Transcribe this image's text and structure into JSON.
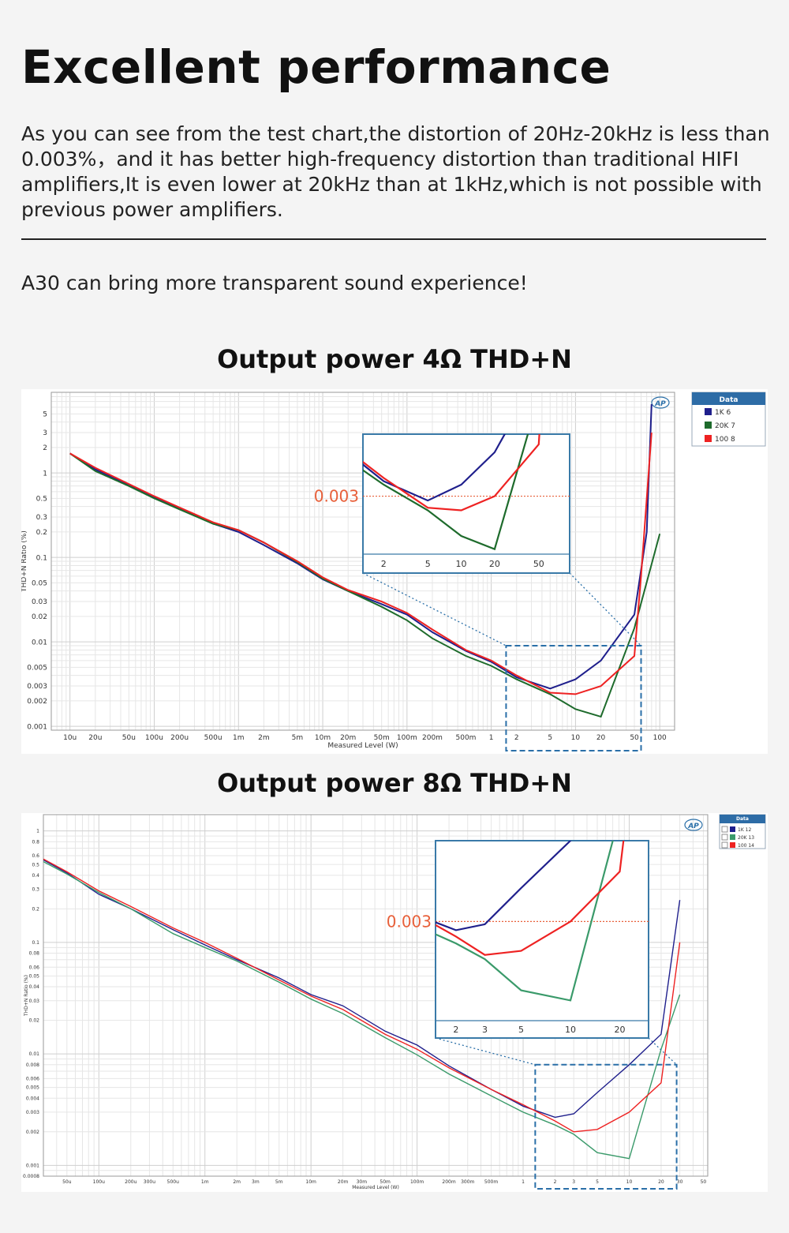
{
  "header": {
    "title": "Excellent performance",
    "paragraph": "As you can see from the test chart,the distortion of 20Hz-20kHz is less than 0.003%，and it has better high-frequency distortion than traditional HIFI amplifiers,It is even lower at 20kHz than at 1kHz,which is not possible with previous power amplifiers.",
    "tagline": "A30 can bring more transparent sound experience!"
  },
  "colors": {
    "series_1k": "#1f1f8c",
    "series_20k": "#1e6b2c",
    "series_100": "#ee2222",
    "series_20k_8ohm": "#3a9a6a",
    "threshold": "#e8603a",
    "zoom_box": "#2a6fa8"
  },
  "chart_data": [
    {
      "type": "line",
      "title": "Output power 4Ω THD+N",
      "xlabel": "Measured Level (W)",
      "ylabel": "THD+N Ratio (%)",
      "xscale": "log",
      "yscale": "log",
      "xlim": [
        6e-06,
        150
      ],
      "ylim": [
        0.0009,
        9
      ],
      "grid": true,
      "legend_placement": "right",
      "legend_title": "Data",
      "x_ticks": [
        {
          "v": 1e-05,
          "l": "10u"
        },
        {
          "v": 2e-05,
          "l": "20u"
        },
        {
          "v": 5e-05,
          "l": "50u"
        },
        {
          "v": 0.0001,
          "l": "100u"
        },
        {
          "v": 0.0002,
          "l": "200u"
        },
        {
          "v": 0.0005,
          "l": "500u"
        },
        {
          "v": 0.001,
          "l": "1m"
        },
        {
          "v": 0.002,
          "l": "2m"
        },
        {
          "v": 0.005,
          "l": "5m"
        },
        {
          "v": 0.01,
          "l": "10m"
        },
        {
          "v": 0.02,
          "l": "20m"
        },
        {
          "v": 0.05,
          "l": "50m"
        },
        {
          "v": 0.1,
          "l": "100m"
        },
        {
          "v": 0.2,
          "l": "200m"
        },
        {
          "v": 0.5,
          "l": "500m"
        },
        {
          "v": 1,
          "l": "1"
        },
        {
          "v": 2,
          "l": "2"
        },
        {
          "v": 5,
          "l": "5"
        },
        {
          "v": 10,
          "l": "10"
        },
        {
          "v": 20,
          "l": "20"
        },
        {
          "v": 50,
          "l": "50"
        },
        {
          "v": 100,
          "l": "100"
        }
      ],
      "y_ticks": [
        {
          "v": 5,
          "l": "5"
        },
        {
          "v": 3,
          "l": "3"
        },
        {
          "v": 2,
          "l": "2"
        },
        {
          "v": 1,
          "l": "1"
        },
        {
          "v": 0.5,
          "l": "0.5"
        },
        {
          "v": 0.3,
          "l": "0.3"
        },
        {
          "v": 0.2,
          "l": "0.2"
        },
        {
          "v": 0.1,
          "l": "0.1"
        },
        {
          "v": 0.05,
          "l": "0.05"
        },
        {
          "v": 0.03,
          "l": "0.03"
        },
        {
          "v": 0.02,
          "l": "0.02"
        },
        {
          "v": 0.01,
          "l": "0.01"
        },
        {
          "v": 0.005,
          "l": "0.005"
        },
        {
          "v": 0.003,
          "l": "0.003"
        },
        {
          "v": 0.002,
          "l": "0.002"
        },
        {
          "v": 0.001,
          "l": "0.001"
        }
      ],
      "series": [
        {
          "name": "1K 6",
          "color": "#1f1f8c",
          "x": [
            1e-05,
            2e-05,
            5e-05,
            0.0001,
            0.0002,
            0.0005,
            0.001,
            0.002,
            0.005,
            0.01,
            0.02,
            0.05,
            0.1,
            0.2,
            0.5,
            1,
            2,
            5,
            10,
            20,
            50,
            70,
            80
          ],
          "y": [
            1.7,
            1.1,
            0.72,
            0.52,
            0.38,
            0.25,
            0.2,
            0.14,
            0.085,
            0.055,
            0.04,
            0.028,
            0.021,
            0.013,
            0.0078,
            0.0058,
            0.0038,
            0.0028,
            0.0036,
            0.006,
            0.021,
            0.2,
            6.5
          ]
        },
        {
          "name": "20K 7",
          "color": "#1e6b2c",
          "x": [
            1e-05,
            2e-05,
            5e-05,
            0.0001,
            0.0002,
            0.0005,
            0.001,
            0.002,
            0.005,
            0.01,
            0.02,
            0.05,
            0.1,
            0.2,
            0.5,
            1,
            2,
            5,
            10,
            20,
            50,
            100
          ],
          "y": [
            1.7,
            1.05,
            0.7,
            0.5,
            0.37,
            0.25,
            0.21,
            0.15,
            0.088,
            0.056,
            0.04,
            0.026,
            0.018,
            0.011,
            0.0068,
            0.0052,
            0.0036,
            0.0024,
            0.0016,
            0.0013,
            0.0145,
            0.19
          ]
        },
        {
          "name": "100 8",
          "color": "#ee2222",
          "x": [
            1e-05,
            2e-05,
            5e-05,
            0.0001,
            0.0002,
            0.0005,
            0.001,
            0.002,
            0.005,
            0.01,
            0.02,
            0.05,
            0.1,
            0.2,
            0.5,
            1,
            2,
            5,
            10,
            20,
            50,
            60,
            80
          ],
          "y": [
            1.7,
            1.15,
            0.74,
            0.53,
            0.39,
            0.26,
            0.21,
            0.15,
            0.09,
            0.058,
            0.041,
            0.03,
            0.022,
            0.014,
            0.008,
            0.006,
            0.004,
            0.0025,
            0.0024,
            0.003,
            0.0068,
            0.06,
            3.0
          ]
        }
      ],
      "inset": {
        "threshold_label": "0.003",
        "threshold": 0.003,
        "xlim": [
          1.3,
          95
        ],
        "ylim": [
          0.0012,
          0.008
        ],
        "x_ticks": [
          {
            "v": 2,
            "l": "2"
          },
          {
            "v": 5,
            "l": "5"
          },
          {
            "v": 10,
            "l": "10"
          },
          {
            "v": 20,
            "l": "20"
          },
          {
            "v": 50,
            "l": "50"
          }
        ]
      },
      "zoom_box": {
        "xlim": [
          1.5,
          60
        ],
        "ylim": [
          0.00095,
          0.009
        ]
      }
    },
    {
      "type": "line",
      "title": "Output power 8Ω THD+N",
      "xlabel": "Measured Level (W)",
      "ylabel": "THD+N Ratio (%)",
      "xscale": "log",
      "yscale": "log",
      "xlim": [
        3e-05,
        55
      ],
      "ylim": [
        0.0008,
        1.4
      ],
      "grid": true,
      "legend_placement": "right",
      "legend_title": "Data",
      "x_ticks": [
        {
          "v": 5e-05,
          "l": "50u"
        },
        {
          "v": 0.0001,
          "l": "100u"
        },
        {
          "v": 0.0002,
          "l": "200u"
        },
        {
          "v": 0.0003,
          "l": "300u"
        },
        {
          "v": 0.0005,
          "l": "500u"
        },
        {
          "v": 0.001,
          "l": "1m"
        },
        {
          "v": 0.002,
          "l": "2m"
        },
        {
          "v": 0.003,
          "l": "3m"
        },
        {
          "v": 0.005,
          "l": "5m"
        },
        {
          "v": 0.01,
          "l": "10m"
        },
        {
          "v": 0.02,
          "l": "20m"
        },
        {
          "v": 0.03,
          "l": "30m"
        },
        {
          "v": 0.05,
          "l": "50m"
        },
        {
          "v": 0.1,
          "l": "100m"
        },
        {
          "v": 0.2,
          "l": "200m"
        },
        {
          "v": 0.3,
          "l": "300m"
        },
        {
          "v": 0.5,
          "l": "500m"
        },
        {
          "v": 1,
          "l": "1"
        },
        {
          "v": 2,
          "l": "2"
        },
        {
          "v": 3,
          "l": "3"
        },
        {
          "v": 5,
          "l": "5"
        },
        {
          "v": 10,
          "l": "10"
        },
        {
          "v": 20,
          "l": "20"
        },
        {
          "v": 30,
          "l": "30"
        },
        {
          "v": 50,
          "l": "50"
        }
      ],
      "y_ticks": [
        {
          "v": 1,
          "l": "1"
        },
        {
          "v": 0.8,
          "l": "0.8"
        },
        {
          "v": 0.6,
          "l": "0.6"
        },
        {
          "v": 0.5,
          "l": "0.5"
        },
        {
          "v": 0.4,
          "l": "0.4"
        },
        {
          "v": 0.3,
          "l": "0.3"
        },
        {
          "v": 0.2,
          "l": "0.2"
        },
        {
          "v": 0.1,
          "l": "0.1"
        },
        {
          "v": 0.08,
          "l": "0.08"
        },
        {
          "v": 0.06,
          "l": "0.06"
        },
        {
          "v": 0.05,
          "l": "0.05"
        },
        {
          "v": 0.04,
          "l": "0.04"
        },
        {
          "v": 0.03,
          "l": "0.03"
        },
        {
          "v": 0.02,
          "l": "0.02"
        },
        {
          "v": 0.01,
          "l": "0.01"
        },
        {
          "v": 0.008,
          "l": "0.008"
        },
        {
          "v": 0.006,
          "l": "0.006"
        },
        {
          "v": 0.005,
          "l": "0.005"
        },
        {
          "v": 0.004,
          "l": "0.004"
        },
        {
          "v": 0.003,
          "l": "0.003"
        },
        {
          "v": 0.002,
          "l": "0.002"
        },
        {
          "v": 0.001,
          "l": "0.001"
        },
        {
          "v": 0.0008,
          "l": "0.0008"
        }
      ],
      "series": [
        {
          "name": "1K 12",
          "color": "#1f1f8c",
          "x": [
            3e-05,
            5e-05,
            0.0001,
            0.0002,
            0.0005,
            0.001,
            0.002,
            0.005,
            0.01,
            0.02,
            0.05,
            0.1,
            0.2,
            0.5,
            1,
            2,
            3,
            5,
            10,
            20,
            30
          ],
          "y": [
            0.55,
            0.42,
            0.27,
            0.2,
            0.13,
            0.095,
            0.07,
            0.048,
            0.034,
            0.027,
            0.016,
            0.012,
            0.0078,
            0.0048,
            0.0034,
            0.0027,
            0.0029,
            0.0045,
            0.008,
            0.015,
            0.24
          ]
        },
        {
          "name": "20K 13",
          "color": "#3a9a6a",
          "x": [
            3e-05,
            5e-05,
            0.0001,
            0.0002,
            0.0005,
            0.001,
            0.002,
            0.005,
            0.01,
            0.02,
            0.05,
            0.1,
            0.2,
            0.5,
            1,
            2,
            3,
            5,
            10,
            20,
            30
          ],
          "y": [
            0.53,
            0.41,
            0.28,
            0.2,
            0.12,
            0.09,
            0.068,
            0.044,
            0.031,
            0.023,
            0.014,
            0.0098,
            0.0066,
            0.0042,
            0.003,
            0.0023,
            0.0019,
            0.0013,
            0.00115,
            0.011,
            0.034
          ]
        },
        {
          "name": "100 14",
          "color": "#ee2222",
          "x": [
            3e-05,
            5e-05,
            0.0001,
            0.0002,
            0.0005,
            0.001,
            0.002,
            0.005,
            0.01,
            0.02,
            0.05,
            0.1,
            0.2,
            0.5,
            1,
            2,
            3,
            5,
            10,
            20,
            30
          ],
          "y": [
            0.56,
            0.43,
            0.29,
            0.21,
            0.135,
            0.1,
            0.072,
            0.046,
            0.033,
            0.025,
            0.015,
            0.011,
            0.0075,
            0.0048,
            0.0035,
            0.0025,
            0.002,
            0.0021,
            0.003,
            0.0055,
            0.1
          ]
        }
      ],
      "inset": {
        "threshold_label": "0.003",
        "threshold": 0.003,
        "xlim": [
          1.5,
          30
        ],
        "ylim": [
          0.0009,
          0.008
        ],
        "x_ticks": [
          {
            "v": 2,
            "l": "2"
          },
          {
            "v": 3,
            "l": "3"
          },
          {
            "v": 5,
            "l": "5"
          },
          {
            "v": 10,
            "l": "10"
          },
          {
            "v": 20,
            "l": "20"
          }
        ]
      },
      "zoom_box": {
        "xlim": [
          1.3,
          28
        ],
        "ylim": [
          0.0006,
          0.008
        ]
      }
    }
  ]
}
